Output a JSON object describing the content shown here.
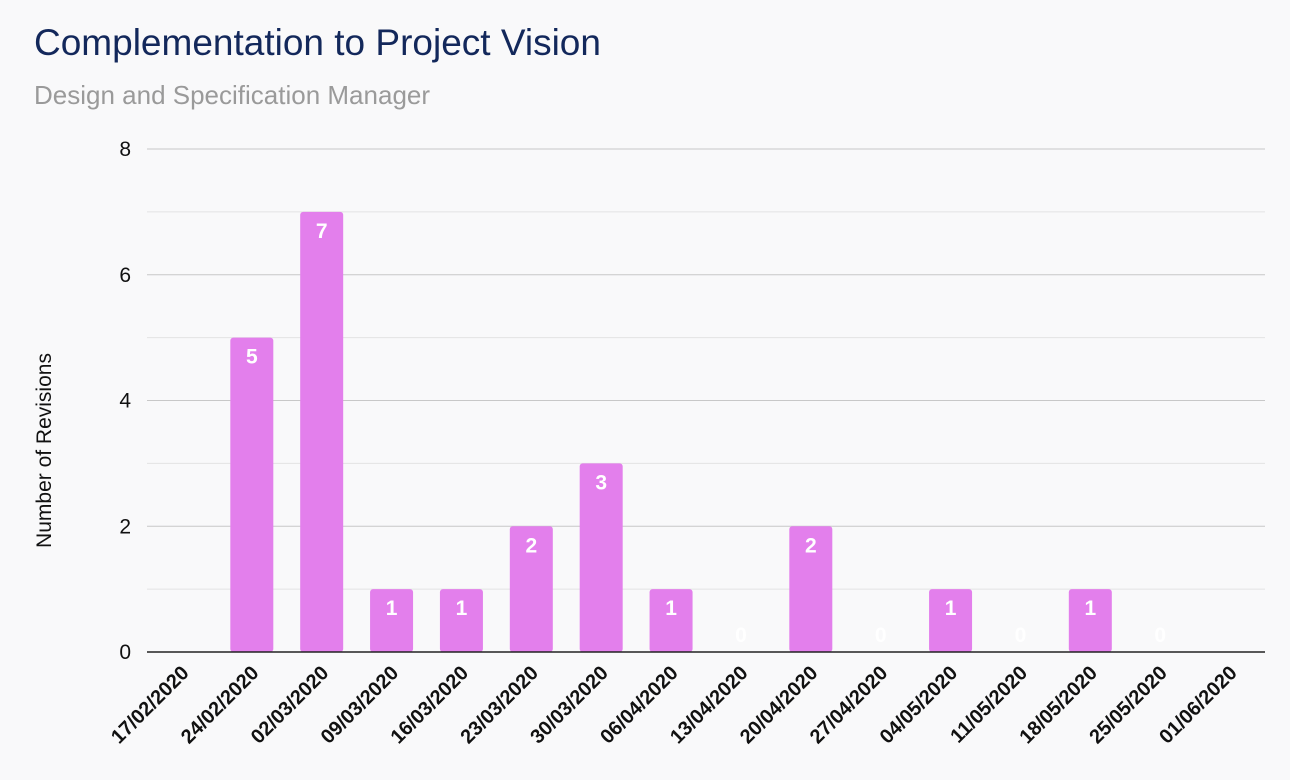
{
  "header": {
    "title": "Complementation to Project Vision",
    "subtitle": "Design and Specification Manager"
  },
  "colors": {
    "bar": "#e37fec",
    "gridline_major": "#c8c8c8",
    "gridline_minor": "#e3e3e3",
    "baseline": "#222222",
    "title": "#13285b",
    "subtitle": "#9a9a9a"
  },
  "chart_data": {
    "type": "bar",
    "title": "Complementation to Project Vision",
    "subtitle": "Design and Specification Manager",
    "xlabel": "",
    "ylabel": "Number of Revisions",
    "ylim": [
      0,
      8
    ],
    "yticks": [
      0,
      2,
      4,
      6,
      8
    ],
    "grid": true,
    "minor_gridlines": true,
    "legend": "none",
    "categories": [
      "17/02/2020",
      "24/02/2020",
      "02/03/2020",
      "09/03/2020",
      "16/03/2020",
      "23/03/2020",
      "30/03/2020",
      "06/04/2020",
      "13/04/2020",
      "20/04/2020",
      "27/04/2020",
      "04/05/2020",
      "11/05/2020",
      "18/05/2020",
      "25/05/2020",
      "01/06/2020"
    ],
    "values": [
      null,
      5,
      7,
      1,
      1,
      2,
      3,
      1,
      0,
      2,
      0,
      1,
      0,
      1,
      0,
      null
    ],
    "data_labels": [
      "",
      "5",
      "7",
      "1",
      "1",
      "2",
      "3",
      "1",
      "0",
      "2",
      "0",
      "1",
      "0",
      "1",
      "0",
      ""
    ]
  }
}
